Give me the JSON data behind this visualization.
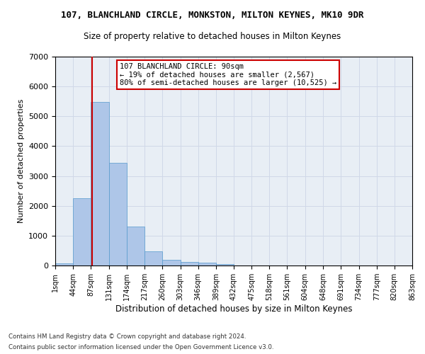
{
  "title": "107, BLANCHLAND CIRCLE, MONKSTON, MILTON KEYNES, MK10 9DR",
  "subtitle": "Size of property relative to detached houses in Milton Keynes",
  "xlabel": "Distribution of detached houses by size in Milton Keynes",
  "ylabel": "Number of detached properties",
  "footnote1": "Contains HM Land Registry data © Crown copyright and database right 2024.",
  "footnote2": "Contains public sector information licensed under the Open Government Licence v3.0.",
  "annotation_title": "107 BLANCHLAND CIRCLE: 90sqm",
  "annotation_line2": "← 19% of detached houses are smaller (2,567)",
  "annotation_line3": "80% of semi-detached houses are larger (10,525) →",
  "property_size_sqm": 90,
  "bin_edges": [
    1,
    44,
    87,
    131,
    174,
    217,
    260,
    303,
    346,
    389,
    432,
    475,
    518,
    561,
    604,
    648,
    691,
    734,
    777,
    820,
    863
  ],
  "bar_heights": [
    70,
    2260,
    5480,
    3430,
    1310,
    470,
    195,
    130,
    85,
    55,
    0,
    0,
    0,
    0,
    0,
    0,
    0,
    0,
    0,
    0
  ],
  "bar_color": "#aec6e8",
  "bar_edge_color": "#5599cc",
  "grid_color": "#d0d8e8",
  "bg_color": "#e8eef5",
  "annotation_box_color": "#ffffff",
  "annotation_box_edge": "#cc0000",
  "vline_color": "#cc0000",
  "ylim": [
    0,
    7000
  ],
  "yticks": [
    0,
    1000,
    2000,
    3000,
    4000,
    5000,
    6000,
    7000
  ]
}
